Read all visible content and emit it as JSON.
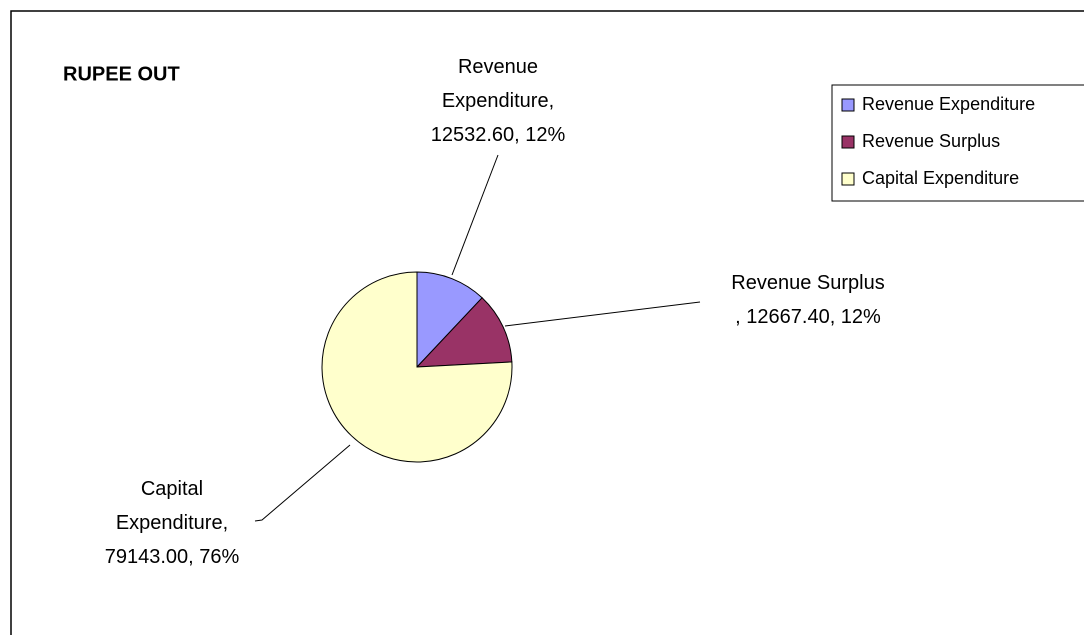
{
  "chart_data": {
    "type": "pie",
    "title": "RUPEE OUT",
    "categories": [
      "Revenue Expenditure",
      "Revenue Surplus",
      "Capital Expenditure"
    ],
    "values": [
      12532.6,
      12667.4,
      79143.0
    ],
    "value_labels": [
      "Revenue\nExpenditure,\n12532.60, 12%",
      "Revenue Surplus\n, 12667.40, 12%",
      "Capital\nExpenditure,\n79143.00, 76%"
    ],
    "colors": [
      "#9999ff",
      "#993366",
      "#ffffcc"
    ],
    "legend": "right"
  }
}
